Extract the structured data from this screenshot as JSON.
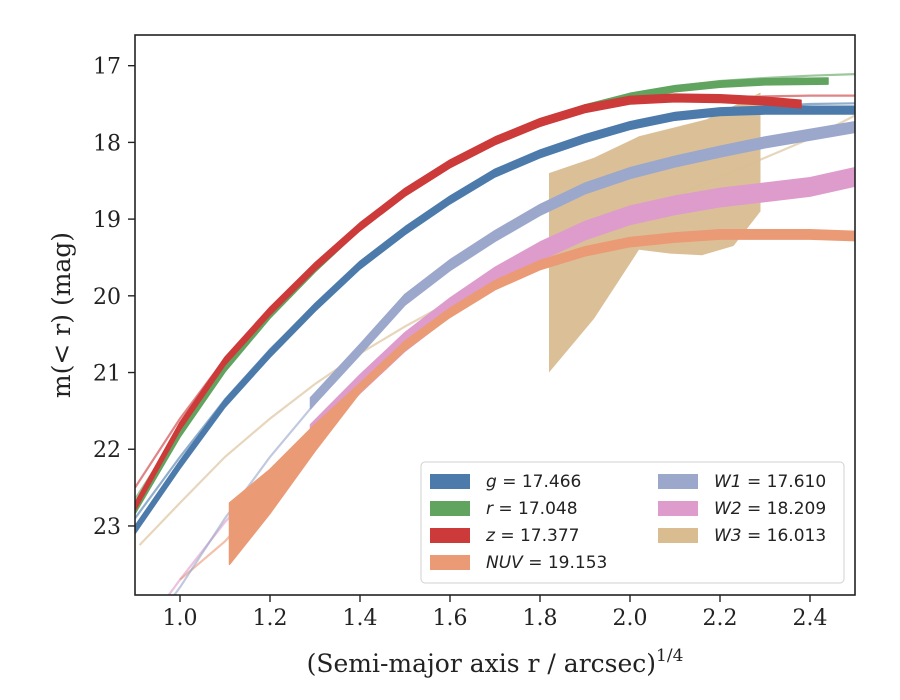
{
  "chart_data": {
    "type": "line",
    "xlabel": "(Semi-major axis r / arcsec)1/4",
    "ylabel": "m(< r) (mag)",
    "xlim": [
      0.9,
      2.5
    ],
    "ylim": [
      23.9,
      16.6
    ],
    "y_inverted": true,
    "xticks": [
      "1.0",
      "1.2",
      "1.4",
      "1.6",
      "1.8",
      "2.0",
      "2.2",
      "2.4"
    ],
    "yticks": [
      "17",
      "18",
      "19",
      "20",
      "21",
      "22",
      "23"
    ],
    "grid": false,
    "legend_placement": "lower-right",
    "legend_columns": 2,
    "series": [
      {
        "key": "g",
        "name": "g = 17.466",
        "label_main": "g",
        "label_value": "= 17.466",
        "color": "#4c7bab",
        "band": {
          "x": [
            0.9,
            1.0,
            1.1,
            1.2,
            1.3,
            1.4,
            1.5,
            1.6,
            1.7,
            1.8,
            1.9,
            2.0,
            2.1,
            2.2,
            2.3,
            2.5
          ],
          "y": [
            23.05,
            22.2,
            21.4,
            20.75,
            20.15,
            19.6,
            19.15,
            18.75,
            18.4,
            18.15,
            17.95,
            17.78,
            17.66,
            17.6,
            17.58,
            17.58
          ],
          "halfwidth": 0.05
        },
        "model": {
          "x": [
            0.9,
            1.0,
            1.1,
            1.2,
            1.3,
            1.4,
            1.5,
            1.6,
            1.7,
            1.8,
            1.9,
            2.0,
            2.1,
            2.2,
            2.3,
            2.4,
            2.5
          ],
          "y": [
            22.9,
            22.1,
            21.35,
            20.7,
            20.12,
            19.6,
            19.15,
            18.75,
            18.42,
            18.15,
            17.93,
            17.76,
            17.65,
            17.57,
            17.53,
            17.5,
            17.49
          ]
        }
      },
      {
        "key": "r",
        "name": "r = 17.048",
        "label_main": "r",
        "label_value": "= 17.048",
        "color": "#60a460",
        "band": {
          "x": [
            0.9,
            1.0,
            1.1,
            1.2,
            1.3,
            1.4,
            1.5,
            1.6,
            1.7,
            1.8,
            1.9,
            2.0,
            2.1,
            2.2,
            2.3,
            2.44
          ],
          "y": [
            22.8,
            21.8,
            20.95,
            20.25,
            19.65,
            19.1,
            18.65,
            18.28,
            17.98,
            17.75,
            17.55,
            17.4,
            17.3,
            17.24,
            17.21,
            17.2
          ],
          "halfwidth": 0.04
        },
        "model": {
          "x": [
            0.9,
            1.0,
            1.1,
            1.2,
            1.3,
            1.4,
            1.5,
            1.6,
            1.7,
            1.8,
            1.9,
            2.0,
            2.1,
            2.2,
            2.3,
            2.4,
            2.5
          ],
          "y": [
            22.65,
            21.75,
            20.95,
            20.25,
            19.65,
            19.12,
            18.66,
            18.28,
            17.98,
            17.74,
            17.54,
            17.38,
            17.27,
            17.2,
            17.16,
            17.13,
            17.11
          ]
        }
      },
      {
        "key": "z",
        "name": "z = 17.377",
        "label_main": "z",
        "label_value": "= 17.377",
        "color": "#cc3a3a",
        "band": {
          "x": [
            0.9,
            1.0,
            1.1,
            1.2,
            1.3,
            1.4,
            1.5,
            1.6,
            1.7,
            1.8,
            1.9,
            2.0,
            2.1,
            2.2,
            2.3,
            2.38
          ],
          "y": [
            22.75,
            21.7,
            20.85,
            20.2,
            19.62,
            19.1,
            18.65,
            18.28,
            17.98,
            17.74,
            17.56,
            17.45,
            17.42,
            17.43,
            17.46,
            17.5
          ],
          "halfwidth": 0.05
        },
        "model": {
          "x": [
            0.9,
            1.0,
            1.1,
            1.2,
            1.3,
            1.4,
            1.5,
            1.6,
            1.7,
            1.8,
            1.9,
            2.0,
            2.1,
            2.2,
            2.3,
            2.4,
            2.5
          ],
          "y": [
            22.5,
            21.6,
            20.82,
            20.18,
            19.6,
            19.1,
            18.65,
            18.28,
            17.98,
            17.75,
            17.58,
            17.48,
            17.43,
            17.41,
            17.4,
            17.39,
            17.39
          ]
        }
      },
      {
        "key": "NUV",
        "name": "NUV = 19.153",
        "label_main": "NUV",
        "label_value": "= 19.153",
        "color": "#eb9a76",
        "band": {
          "x": [
            1.11,
            1.2,
            1.3,
            1.4,
            1.5,
            1.6,
            1.7,
            1.8,
            1.9,
            2.0,
            2.1,
            2.2,
            2.3,
            2.4,
            2.5
          ],
          "y": [
            23.1,
            22.55,
            21.85,
            21.2,
            20.65,
            20.22,
            19.86,
            19.6,
            19.42,
            19.3,
            19.24,
            19.2,
            19.2,
            19.2,
            19.22
          ],
          "halfwidth_start": 0.4,
          "halfwidth": 0.06
        },
        "model": {
          "x": [
            1.0,
            1.1,
            1.2,
            1.3,
            1.4,
            1.5,
            1.6,
            1.7,
            1.8,
            1.9,
            2.0,
            2.1,
            2.2,
            2.3,
            2.4,
            2.5
          ],
          "y": [
            23.7,
            23.2,
            22.55,
            21.85,
            21.2,
            20.65,
            20.22,
            19.86,
            19.6,
            19.42,
            19.3,
            19.24,
            19.2,
            19.19,
            19.19,
            19.2
          ]
        }
      },
      {
        "key": "W1",
        "name": "W1 = 17.610",
        "label_main": "W1",
        "label_value": "= 17.610",
        "color": "#9ba8cc",
        "band": {
          "x": [
            1.29,
            1.4,
            1.5,
            1.6,
            1.7,
            1.8,
            1.9,
            2.0,
            2.1,
            2.2,
            2.3,
            2.4,
            2.5
          ],
          "y": [
            21.4,
            20.7,
            20.05,
            19.6,
            19.22,
            18.88,
            18.6,
            18.4,
            18.25,
            18.12,
            18.0,
            17.9,
            17.8
          ],
          "halfwidth": 0.07
        },
        "model": {
          "x": [
            0.95,
            1.0,
            1.1,
            1.2,
            1.3,
            1.4,
            1.5,
            1.6,
            1.7,
            1.8,
            1.9,
            2.0,
            2.1,
            2.2,
            2.3,
            2.4,
            2.5
          ],
          "y": [
            24.2,
            23.8,
            22.9,
            22.1,
            21.4,
            20.7,
            20.05,
            19.6,
            19.22,
            18.88,
            18.6,
            18.4,
            18.25,
            18.12,
            18.0,
            17.9,
            17.8
          ]
        }
      },
      {
        "key": "W2",
        "name": "W2 = 18.209",
        "label_main": "W2",
        "label_value": "= 18.209",
        "color": "#de9ccc",
        "band": {
          "x": [
            1.29,
            1.4,
            1.5,
            1.6,
            1.7,
            1.8,
            1.9,
            2.0,
            2.1,
            2.2,
            2.3,
            2.4,
            2.5
          ],
          "y": [
            21.8,
            21.15,
            20.6,
            20.15,
            19.75,
            19.42,
            19.15,
            18.95,
            18.82,
            18.72,
            18.65,
            18.58,
            18.45
          ],
          "halfwidth": 0.12
        },
        "model": {
          "x": [
            0.95,
            1.0,
            1.1,
            1.2,
            1.3,
            1.4,
            1.5,
            1.6,
            1.7,
            1.8,
            1.9,
            2.0,
            2.1,
            2.2,
            2.3,
            2.4,
            2.5
          ],
          "y": [
            24.1,
            23.7,
            22.95,
            22.3,
            21.75,
            21.12,
            20.6,
            20.15,
            19.75,
            19.42,
            19.15,
            18.95,
            18.82,
            18.72,
            18.62,
            18.5,
            18.4
          ]
        }
      },
      {
        "key": "W3",
        "name": "W3 = 16.013",
        "label_main": "W3",
        "label_value": "= 16.013",
        "color": "#d9bd91",
        "band_poly": {
          "x": [
            1.82,
            1.92,
            2.02,
            2.17,
            2.29,
            2.29,
            2.23,
            2.16,
            2.09,
            2.02,
            1.92,
            1.82
          ],
          "y": [
            18.4,
            18.2,
            17.92,
            17.7,
            17.35,
            18.9,
            19.35,
            19.47,
            19.45,
            19.4,
            20.3,
            21.0
          ]
        },
        "model": {
          "x": [
            0.91,
            1.0,
            1.1,
            1.2,
            1.3,
            1.4,
            1.5,
            1.6,
            1.7,
            1.8,
            1.9,
            2.0,
            2.1,
            2.2,
            2.3,
            2.4,
            2.5
          ],
          "y": [
            23.25,
            22.7,
            22.1,
            21.6,
            21.15,
            20.75,
            20.4,
            20.08,
            19.78,
            19.5,
            19.22,
            18.95,
            18.7,
            18.45,
            18.2,
            17.95,
            17.65
          ]
        }
      }
    ]
  }
}
